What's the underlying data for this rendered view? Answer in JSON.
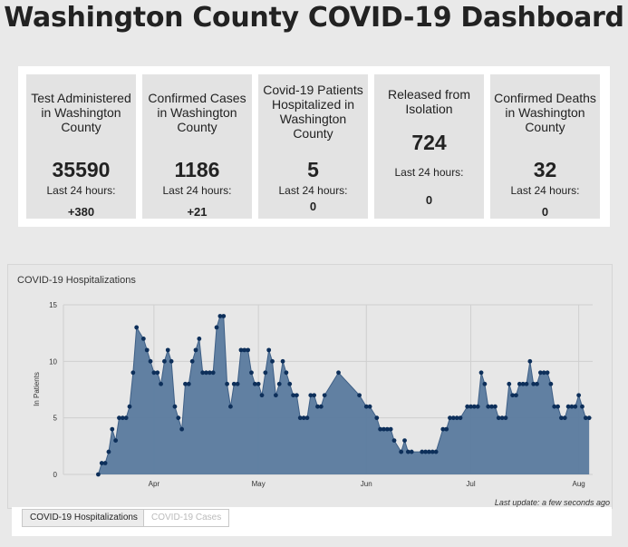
{
  "page": {
    "title": "Washington County COVID-19 Dashboard"
  },
  "stats": [
    {
      "label": "Test Administered in Washington County",
      "value": "35590",
      "sub": "Last 24 hours:",
      "delta": "+380"
    },
    {
      "label": "Confirmed Cases in Washington County",
      "value": "1186",
      "sub": "Last 24 hours:",
      "delta": "+21"
    },
    {
      "label": "Covid-19 Patients Hospitalized in Washington County",
      "value": "5",
      "sub": "Last 24 hours:",
      "delta": "0"
    },
    {
      "label": "Released from Isolation",
      "value": "724",
      "sub": "Last 24 hours:",
      "delta": "0"
    },
    {
      "label": "Confirmed Deaths in Washington County",
      "value": "32",
      "sub": "Last 24 hours:",
      "delta": "0"
    }
  ],
  "chart": {
    "title": "COVID-19 Hospitalizations",
    "last_update": "Last update: a few seconds ago"
  },
  "chart_data": {
    "type": "area",
    "title": "COVID-19 Hospitalizations",
    "ylabel": "In Patients",
    "xlabel": "",
    "ylim": [
      0,
      15
    ],
    "yticks": [
      0,
      5,
      10,
      15
    ],
    "xticks": [
      {
        "label": "Apr",
        "x": "2020-04-01"
      },
      {
        "label": "May",
        "x": "2020-05-01"
      },
      {
        "label": "Jun",
        "x": "2020-06-01"
      },
      {
        "label": "Jul",
        "x": "2020-07-01"
      },
      {
        "label": "Aug",
        "x": "2020-08-01"
      }
    ],
    "grid": true,
    "color": "#5a7a9e",
    "marker_color": "#0d2f5a",
    "series": [
      {
        "name": "",
        "points": [
          [
            "2020-03-16",
            0
          ],
          [
            "2020-03-17",
            1
          ],
          [
            "2020-03-18",
            1
          ],
          [
            "2020-03-19",
            2
          ],
          [
            "2020-03-20",
            4
          ],
          [
            "2020-03-21",
            3
          ],
          [
            "2020-03-22",
            5
          ],
          [
            "2020-03-23",
            5
          ],
          [
            "2020-03-24",
            5
          ],
          [
            "2020-03-25",
            6
          ],
          [
            "2020-03-26",
            9
          ],
          [
            "2020-03-27",
            13
          ],
          [
            "2020-03-29",
            12
          ],
          [
            "2020-03-30",
            11
          ],
          [
            "2020-03-31",
            10
          ],
          [
            "2020-04-01",
            9
          ],
          [
            "2020-04-02",
            9
          ],
          [
            "2020-04-03",
            8
          ],
          [
            "2020-04-04",
            10
          ],
          [
            "2020-04-05",
            11
          ],
          [
            "2020-04-06",
            10
          ],
          [
            "2020-04-07",
            6
          ],
          [
            "2020-04-08",
            5
          ],
          [
            "2020-04-09",
            4
          ],
          [
            "2020-04-10",
            8
          ],
          [
            "2020-04-11",
            8
          ],
          [
            "2020-04-12",
            10
          ],
          [
            "2020-04-13",
            11
          ],
          [
            "2020-04-14",
            12
          ],
          [
            "2020-04-15",
            9
          ],
          [
            "2020-04-16",
            9
          ],
          [
            "2020-04-17",
            9
          ],
          [
            "2020-04-18",
            9
          ],
          [
            "2020-04-19",
            13
          ],
          [
            "2020-04-20",
            14
          ],
          [
            "2020-04-21",
            14
          ],
          [
            "2020-04-22",
            8
          ],
          [
            "2020-04-23",
            6
          ],
          [
            "2020-04-24",
            8
          ],
          [
            "2020-04-25",
            8
          ],
          [
            "2020-04-26",
            11
          ],
          [
            "2020-04-27",
            11
          ],
          [
            "2020-04-28",
            11
          ],
          [
            "2020-04-29",
            9
          ],
          [
            "2020-04-30",
            8
          ],
          [
            "2020-05-01",
            8
          ],
          [
            "2020-05-02",
            7
          ],
          [
            "2020-05-03",
            9
          ],
          [
            "2020-05-04",
            11
          ],
          [
            "2020-05-05",
            10
          ],
          [
            "2020-05-06",
            7
          ],
          [
            "2020-05-07",
            8
          ],
          [
            "2020-05-08",
            10
          ],
          [
            "2020-05-09",
            9
          ],
          [
            "2020-05-10",
            8
          ],
          [
            "2020-05-11",
            7
          ],
          [
            "2020-05-12",
            7
          ],
          [
            "2020-05-13",
            5
          ],
          [
            "2020-05-14",
            5
          ],
          [
            "2020-05-15",
            5
          ],
          [
            "2020-05-16",
            7
          ],
          [
            "2020-05-17",
            7
          ],
          [
            "2020-05-18",
            6
          ],
          [
            "2020-05-19",
            6
          ],
          [
            "2020-05-20",
            7
          ],
          [
            "2020-05-24",
            9
          ],
          [
            "2020-05-30",
            7
          ],
          [
            "2020-06-01",
            6
          ],
          [
            "2020-06-02",
            6
          ],
          [
            "2020-06-04",
            5
          ],
          [
            "2020-06-05",
            4
          ],
          [
            "2020-06-06",
            4
          ],
          [
            "2020-06-07",
            4
          ],
          [
            "2020-06-08",
            4
          ],
          [
            "2020-06-09",
            3
          ],
          [
            "2020-06-11",
            2
          ],
          [
            "2020-06-12",
            3
          ],
          [
            "2020-06-13",
            2
          ],
          [
            "2020-06-14",
            2
          ],
          [
            "2020-06-17",
            2
          ],
          [
            "2020-06-18",
            2
          ],
          [
            "2020-06-19",
            2
          ],
          [
            "2020-06-20",
            2
          ],
          [
            "2020-06-21",
            2
          ],
          [
            "2020-06-23",
            4
          ],
          [
            "2020-06-24",
            4
          ],
          [
            "2020-06-25",
            5
          ],
          [
            "2020-06-26",
            5
          ],
          [
            "2020-06-27",
            5
          ],
          [
            "2020-06-28",
            5
          ],
          [
            "2020-06-30",
            6
          ],
          [
            "2020-07-01",
            6
          ],
          [
            "2020-07-02",
            6
          ],
          [
            "2020-07-03",
            6
          ],
          [
            "2020-07-04",
            9
          ],
          [
            "2020-07-05",
            8
          ],
          [
            "2020-07-06",
            6
          ],
          [
            "2020-07-07",
            6
          ],
          [
            "2020-07-08",
            6
          ],
          [
            "2020-07-09",
            5
          ],
          [
            "2020-07-10",
            5
          ],
          [
            "2020-07-11",
            5
          ],
          [
            "2020-07-12",
            8
          ],
          [
            "2020-07-13",
            7
          ],
          [
            "2020-07-14",
            7
          ],
          [
            "2020-07-15",
            8
          ],
          [
            "2020-07-16",
            8
          ],
          [
            "2020-07-17",
            8
          ],
          [
            "2020-07-18",
            10
          ],
          [
            "2020-07-19",
            8
          ],
          [
            "2020-07-20",
            8
          ],
          [
            "2020-07-21",
            9
          ],
          [
            "2020-07-22",
            9
          ],
          [
            "2020-07-23",
            9
          ],
          [
            "2020-07-24",
            8
          ],
          [
            "2020-07-25",
            6
          ],
          [
            "2020-07-26",
            6
          ],
          [
            "2020-07-27",
            5
          ],
          [
            "2020-07-28",
            5
          ],
          [
            "2020-07-29",
            6
          ],
          [
            "2020-07-30",
            6
          ],
          [
            "2020-07-31",
            6
          ],
          [
            "2020-08-01",
            7
          ],
          [
            "2020-08-02",
            6
          ],
          [
            "2020-08-03",
            5
          ],
          [
            "2020-08-04",
            5
          ]
        ]
      }
    ],
    "x_range": [
      "2020-03-06",
      "2020-08-05"
    ]
  },
  "tabs": [
    {
      "label": "COVID-19 Hospitalizations",
      "active": true
    },
    {
      "label": "COVID-19 Cases",
      "active": false
    }
  ]
}
